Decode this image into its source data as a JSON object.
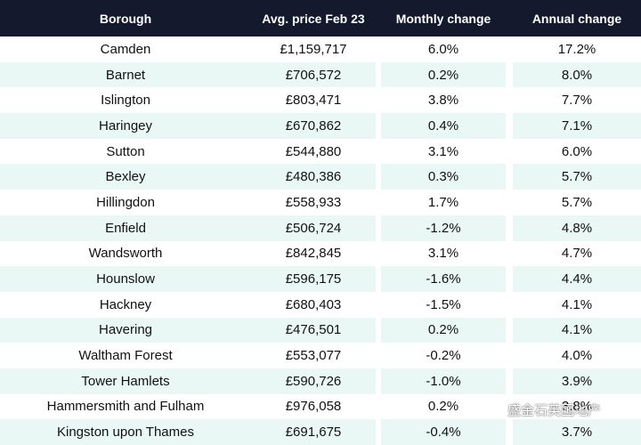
{
  "headers": [
    "Borough",
    "Avg. price Feb 23",
    "Monthly change",
    "Annual change"
  ],
  "rows": [
    [
      "Camden",
      "£1,159,717",
      "6.0%",
      "17.2%"
    ],
    [
      "Barnet",
      "£706,572",
      "0.2%",
      "8.0%"
    ],
    [
      "Islington",
      "£803,471",
      "3.8%",
      "7.7%"
    ],
    [
      "Haringey",
      "£670,862",
      "0.4%",
      "7.1%"
    ],
    [
      "Sutton",
      "£544,880",
      "3.1%",
      "6.0%"
    ],
    [
      "Bexley",
      "£480,386",
      "0.3%",
      "5.7%"
    ],
    [
      "Hillingdon",
      "£558,933",
      "1.7%",
      "5.7%"
    ],
    [
      "Enfield",
      "£506,724",
      "-1.2%",
      "4.8%"
    ],
    [
      "Wandsworth",
      "£842,845",
      "3.1%",
      "4.7%"
    ],
    [
      "Hounslow",
      "£596,175",
      "-1.6%",
      "4.4%"
    ],
    [
      "Hackney",
      "£680,403",
      "-1.5%",
      "4.1%"
    ],
    [
      "Havering",
      "£476,501",
      "0.2%",
      "4.1%"
    ],
    [
      "Waltham Forest",
      "£553,077",
      "-0.2%",
      "4.0%"
    ],
    [
      "Tower Hamlets",
      "£590,726",
      "-1.0%",
      "3.9%"
    ],
    [
      "Hammersmith and Fulham",
      "£976,058",
      "0.2%",
      "3.8%"
    ],
    [
      "Kingston upon Thames",
      "£691,675",
      "-0.4%",
      "3.7%"
    ]
  ],
  "watermark": {
    "text": "盛金石英国地产",
    "icon": "wechat-icon"
  },
  "colors": {
    "header_bg": "#14192e",
    "stripe_bg": "#eaf8f5"
  }
}
